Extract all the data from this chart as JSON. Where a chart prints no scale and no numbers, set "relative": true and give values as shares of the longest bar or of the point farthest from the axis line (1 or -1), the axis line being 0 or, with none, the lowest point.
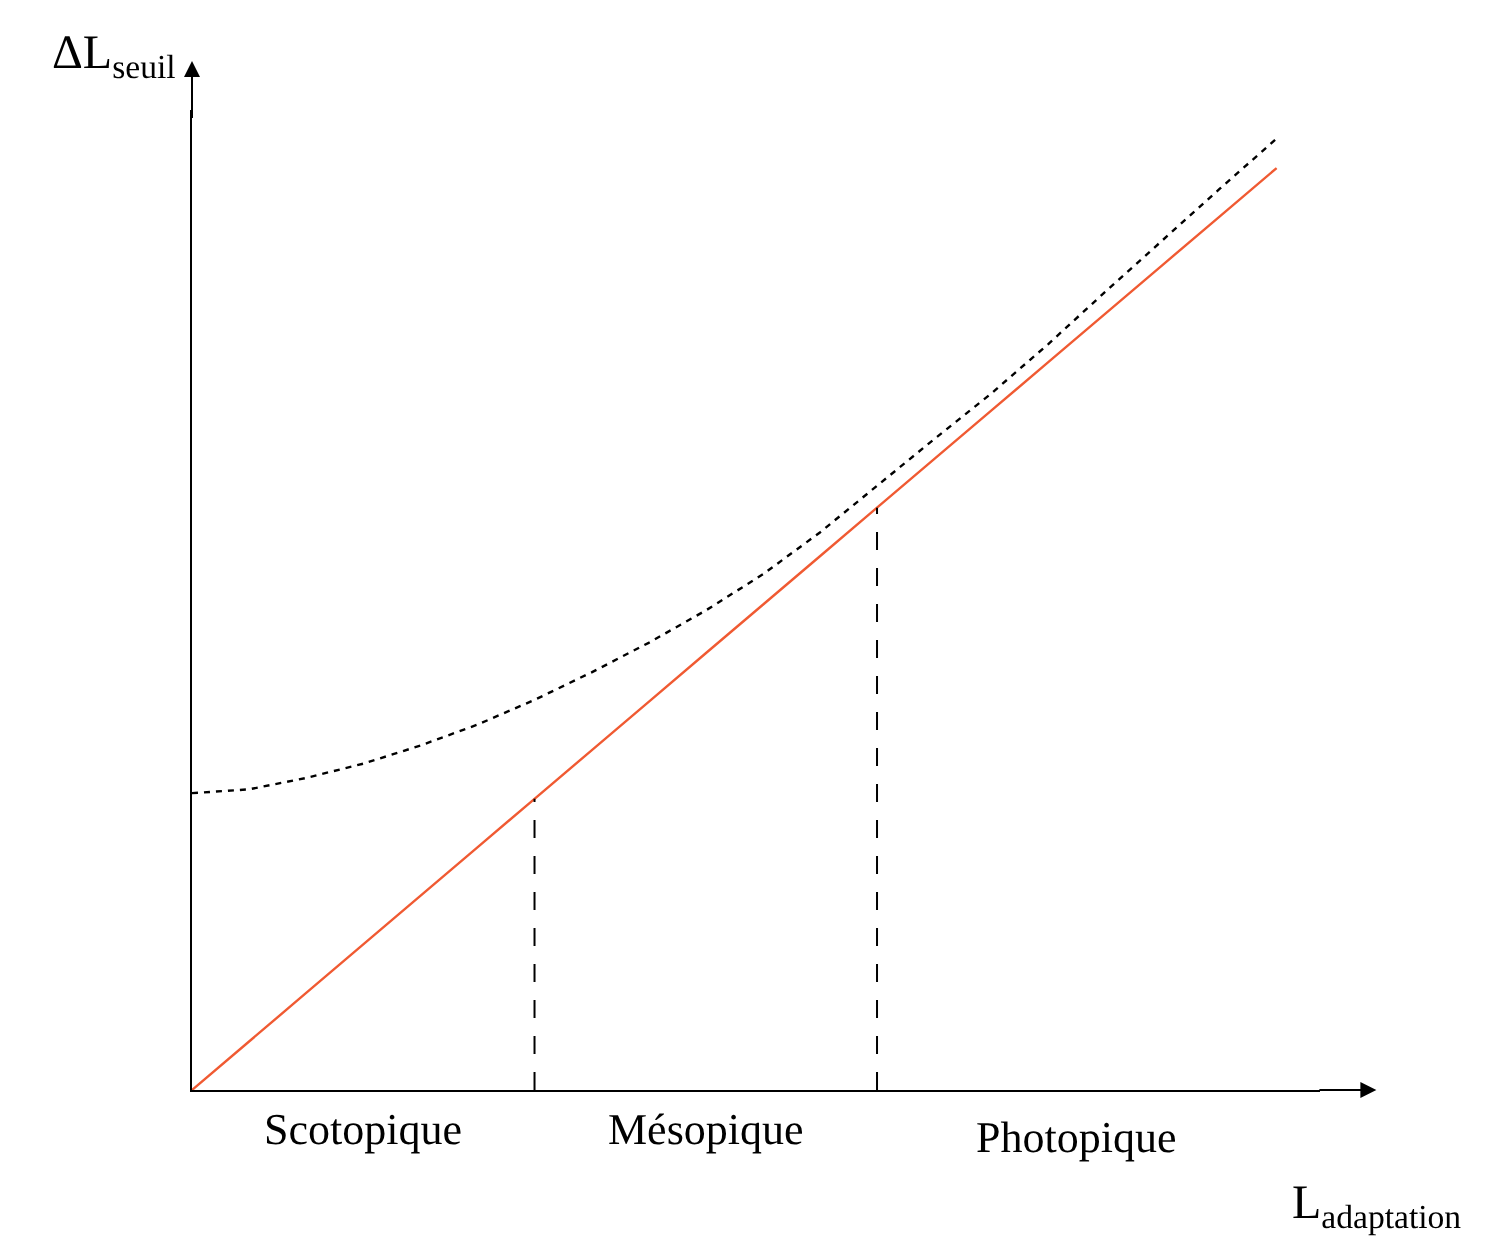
{
  "chart_data": {
    "type": "line",
    "relative": true,
    "xlabel": "L$_{adaptation}$",
    "ylabel": "ΔL$_{seuil}$",
    "categories": [
      null,
      null,
      null,
      null,
      null,
      null,
      null,
      null,
      null,
      null,
      null,
      null,
      null,
      null,
      null,
      null,
      null,
      null,
      null,
      null
    ],
    "legend": false,
    "marker": "none",
    "series": [
      {
        "color": "#000000",
        "line_style": "dotted",
        "values": [
          0.312,
          0.316,
          0.328,
          0.343,
          0.362,
          0.384,
          0.41,
          0.439,
          0.47,
          0.504,
          0.542,
          0.586,
          0.635,
          0.684,
          0.732,
          0.784,
          0.839,
          0.893,
          0.947,
          1.0
        ]
      },
      {
        "color": "#f05a32",
        "line_style": "solid",
        "values": [
          0,
          0.051,
          0.102,
          0.153,
          0.204,
          0.255,
          0.306,
          0.357,
          0.408,
          0.459,
          0.51,
          0.561,
          0.612,
          0.663,
          0.714,
          0.765,
          0.816,
          0.867,
          0.918,
          0.969
        ]
      }
    ],
    "annotations": [
      "Scotopique",
      "Mésopique",
      "Photopique"
    ]
  }
}
